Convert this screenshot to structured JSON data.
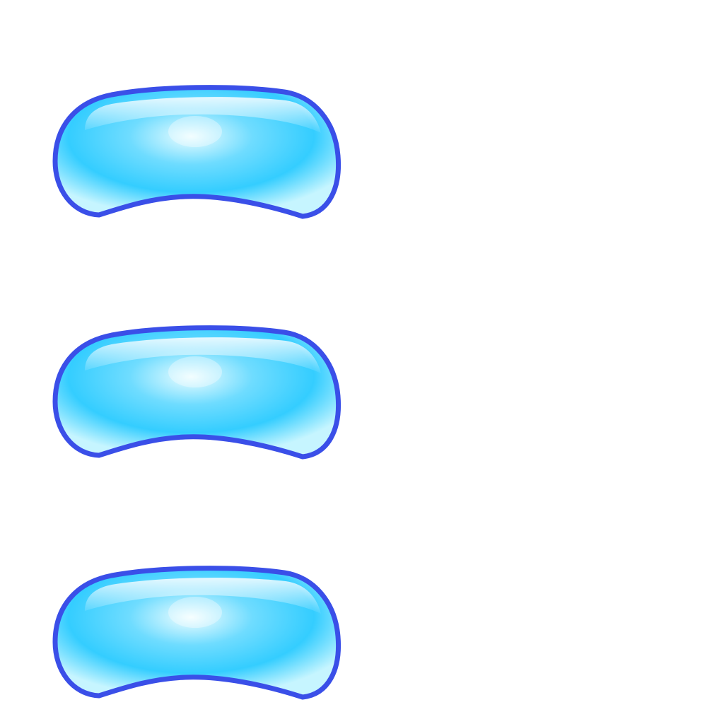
{
  "buttons": [
    {
      "id": "1",
      "label": ""
    },
    {
      "id": "2",
      "label": ""
    },
    {
      "id": "3",
      "label": ""
    }
  ],
  "style": {
    "outline_color": "#3a4fe8",
    "fill_light": "#c8f6ff",
    "fill_mid": "#5fd6ff",
    "fill_deep": "#2cc8ff",
    "highlight_color": "#ffffff"
  }
}
